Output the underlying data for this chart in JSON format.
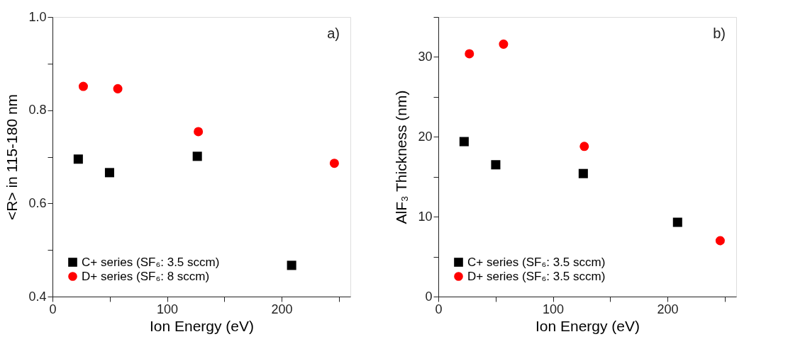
{
  "chart_data": [
    {
      "type": "scatter",
      "xlabel": "Ion Energy (eV)",
      "ylabel": "<R> in 115-180 nm",
      "annotations": [
        "a)"
      ],
      "legend": "bottom left",
      "grid": false,
      "xlim": [
        0,
        260
      ],
      "xticks": [
        0,
        {
          "value": 50,
          "label": null
        },
        100,
        {
          "value": 150,
          "label": null
        },
        200,
        {
          "value": 250,
          "label": null
        }
      ],
      "ylim": [
        0.4,
        1.0
      ],
      "yticks": [
        "0.4",
        {
          "value": 0.5,
          "label": null
        },
        0.6,
        {
          "value": 0.7,
          "label": null
        },
        0.8,
        {
          "value": 0.9,
          "label": null
        },
        {
          "value": 1.0,
          "label": "1.0"
        }
      ],
      "series": [
        {
          "name": "C+ series (SF₆: 3.5 sccm)",
          "color": "#000000",
          "marker": "square",
          "x": [
            22.5,
            49.8,
            126.4,
            208.7
          ],
          "values": [
            0.695,
            0.666,
            0.701,
            0.467
          ]
        },
        {
          "name": "D+ series (SF₆: 8 sccm)",
          "color": "#ff0000",
          "marker": "circle",
          "x": [
            26.9,
            57,
            127.3,
            246
          ],
          "values": [
            0.851,
            0.846,
            0.754,
            0.686
          ]
        }
      ]
    },
    {
      "type": "scatter",
      "xlabel": "Ion Energy (eV)",
      "ylabel": "AlF₃ Thickness (nm)",
      "annotations": [
        "b)"
      ],
      "legend": "bottom left",
      "grid": false,
      "xlim": [
        0,
        260
      ],
      "xticks": [
        0,
        {
          "value": 50,
          "label": null
        },
        100,
        {
          "value": 150,
          "label": null
        },
        200,
        {
          "value": 250,
          "label": null
        }
      ],
      "ylim": [
        0,
        35
      ],
      "yticks": [
        0,
        {
          "value": 5,
          "label": null
        },
        10,
        {
          "value": 15,
          "label": null
        },
        20,
        {
          "value": 25,
          "label": null
        },
        30,
        {
          "value": 35,
          "label": null
        }
      ],
      "series": [
        {
          "name": "C+ series (SF₆: 3.5 sccm)",
          "color": "#000000",
          "marker": "square",
          "x": [
            22.5,
            50.1,
            126.5,
            208.8
          ],
          "values": [
            19.4,
            16.5,
            15.4,
            9.3
          ]
        },
        {
          "name": "D+ series (SF₆: 3.5 sccm)",
          "color": "#ff0000",
          "marker": "circle",
          "x": [
            27.1,
            56.9,
            127.4,
            246
          ],
          "values": [
            30.4,
            31.6,
            18.8,
            7.0
          ]
        }
      ]
    }
  ]
}
